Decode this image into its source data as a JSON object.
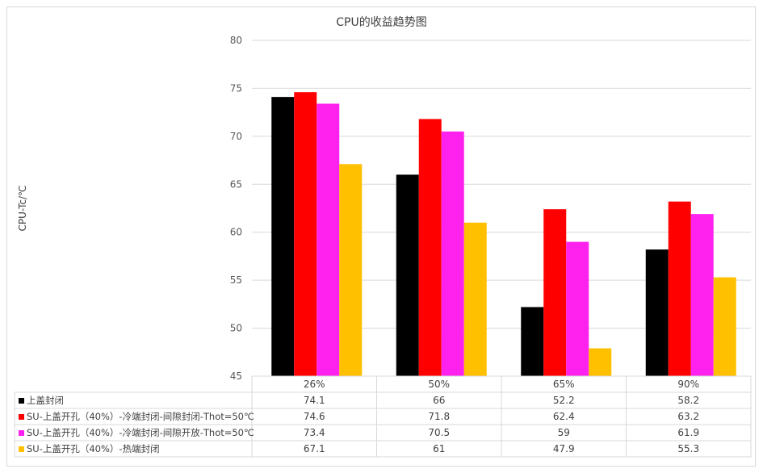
{
  "chart_data": {
    "type": "bar",
    "title": "CPU的收益趋势图",
    "xlabel": "",
    "ylabel": "CPU-Tc/℃",
    "ylim": [
      45,
      80
    ],
    "yticks": [
      45,
      50,
      55,
      60,
      65,
      70,
      75,
      80
    ],
    "grid": true,
    "legend": "data-table-below",
    "categories": [
      "26%",
      "50%",
      "65%",
      "90%"
    ],
    "series": [
      {
        "name": "上盖封闭",
        "color": "#000000",
        "values": [
          74.1,
          66,
          52.2,
          58.2
        ]
      },
      {
        "name": "SU-上盖开孔（40%）-冷端封闭-间隙封闭-Thot=50℃",
        "color": "#ff0000",
        "values": [
          74.6,
          71.8,
          62.4,
          63.2
        ]
      },
      {
        "name": "SU-上盖开孔（40%）-冷端封闭-间隙开放-Thot=50℃",
        "color": "#ff22ee",
        "values": [
          73.4,
          70.5,
          59,
          61.9
        ]
      },
      {
        "name": "SU-上盖开孔（40%）-热端封闭",
        "color": "#ffc000",
        "values": [
          67.1,
          61,
          47.9,
          55.3
        ]
      }
    ]
  }
}
